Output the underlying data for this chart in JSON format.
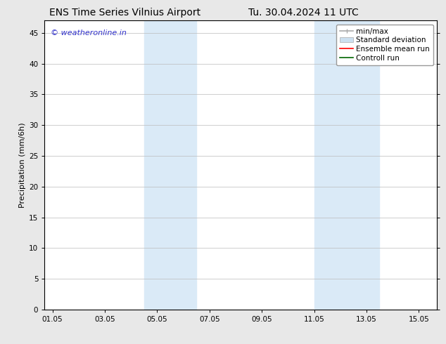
{
  "title": "ENS Time Series Vilnius Airport",
  "title2": "Tu. 30.04.2024 11 UTC",
  "ylabel": "Precipitation (mm/6h)",
  "xlabel": "",
  "ylim": [
    0,
    47
  ],
  "yticks": [
    0,
    5,
    10,
    15,
    20,
    25,
    30,
    35,
    40,
    45
  ],
  "xtick_labels": [
    "01.05",
    "03.05",
    "05.05",
    "07.05",
    "09.05",
    "11.05",
    "13.05",
    "15.05"
  ],
  "xtick_positions": [
    0,
    2,
    4,
    6,
    8,
    10,
    12,
    14
  ],
  "xlim": [
    -0.3,
    14.7
  ],
  "shaded_bands": [
    {
      "x_start": 3.5,
      "x_end": 5.5,
      "color": "#daeaf7"
    },
    {
      "x_start": 10.0,
      "x_end": 12.5,
      "color": "#daeaf7"
    }
  ],
  "watermark_text": "© weatheronline.in",
  "watermark_color": "#3333cc",
  "legend_items": [
    {
      "label": "min/max",
      "color": "#aaaaaa",
      "lw": 1.2
    },
    {
      "label": "Standard deviation",
      "color": "#cce0f0",
      "lw": 6
    },
    {
      "label": "Ensemble mean run",
      "color": "#ff0000",
      "lw": 1.2
    },
    {
      "label": "Controll run",
      "color": "#006600",
      "lw": 1.2
    }
  ],
  "background_color": "#e8e8e8",
  "plot_bg_color": "#ffffff",
  "grid_color": "#bbbbbb",
  "tick_color": "#000000",
  "spine_color": "#000000",
  "title_fontsize": 10,
  "axis_label_fontsize": 8,
  "tick_fontsize": 7.5,
  "legend_fontsize": 7.5,
  "watermark_fontsize": 8
}
